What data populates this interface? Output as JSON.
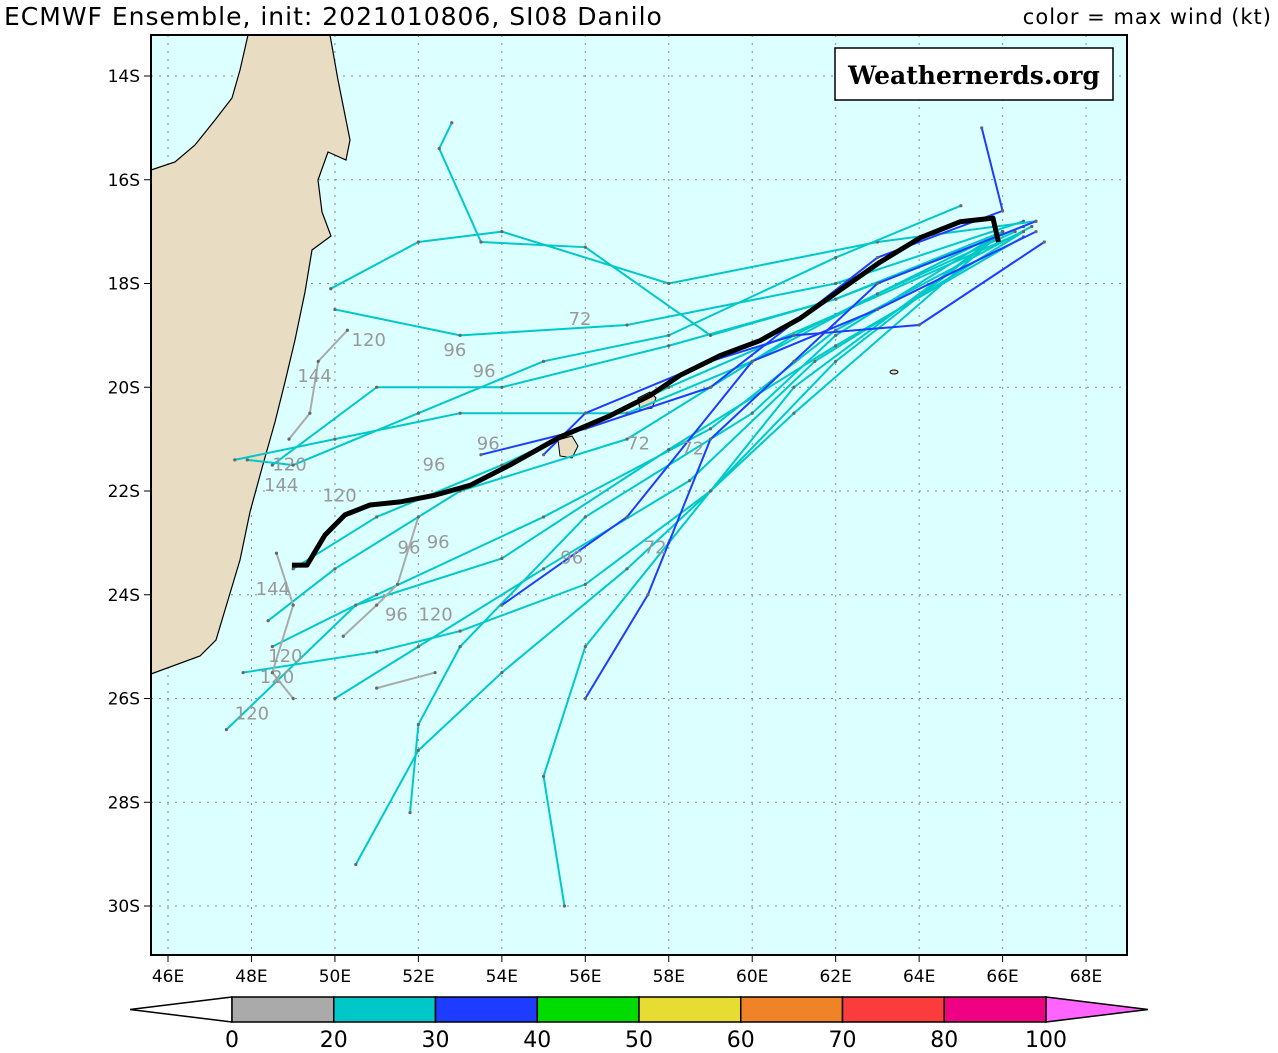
{
  "header": {
    "title": "ECMWF Ensemble, init: 2021010806, SI08 Danilo",
    "legend_caption": "color = max wind (kt)"
  },
  "watermark": "Weathernerds.org",
  "map": {
    "lon_range": [
      45.6,
      69.0
    ],
    "lat_range": [
      13.2,
      30.9
    ],
    "lon_ticks": [
      "46E",
      "48E",
      "50E",
      "52E",
      "54E",
      "56E",
      "58E",
      "60E",
      "62E",
      "64E",
      "66E",
      "68E"
    ],
    "lon_values": [
      46,
      48,
      50,
      52,
      54,
      56,
      58,
      60,
      62,
      64,
      66,
      68
    ],
    "lat_ticks": [
      "14S",
      "16S",
      "18S",
      "20S",
      "22S",
      "24S",
      "26S",
      "28S",
      "30S"
    ],
    "lat_values": [
      14,
      16,
      18,
      20,
      22,
      24,
      26,
      28,
      30
    ],
    "ocean_color": "#dcffff",
    "land_color": "#e8dcc2",
    "grid": "dotted"
  },
  "colorbar": {
    "labels": [
      "0",
      "20",
      "30",
      "40",
      "50",
      "60",
      "70",
      "80",
      "100"
    ],
    "colors": [
      "#aaaaaa",
      "#00c8c8",
      "#1e3cff",
      "#00dc00",
      "#e6dc32",
      "#f08228",
      "#fa3c3c",
      "#f00082",
      "#ff64ff"
    ]
  },
  "ensemble_mean": {
    "color": "#000000",
    "points": [
      [
        65.9,
        17.2
      ],
      [
        65.77,
        16.74
      ],
      [
        64.98,
        16.81
      ],
      [
        64.02,
        17.12
      ],
      [
        63.06,
        17.59
      ],
      [
        62.1,
        18.13
      ],
      [
        61.15,
        18.67
      ],
      [
        60.19,
        19.1
      ],
      [
        59.23,
        19.39
      ],
      [
        58.27,
        19.77
      ],
      [
        57.55,
        20.16
      ],
      [
        56.59,
        20.55
      ],
      [
        55.39,
        20.96
      ],
      [
        54.19,
        21.5
      ],
      [
        53.24,
        21.89
      ],
      [
        52.4,
        22.08
      ],
      [
        51.56,
        22.21
      ],
      [
        50.84,
        22.27
      ],
      [
        50.24,
        22.46
      ],
      [
        49.76,
        22.85
      ],
      [
        49.33,
        23.43
      ],
      [
        48.97,
        23.43
      ]
    ]
  },
  "tracks": [
    {
      "category": "20-30",
      "color": "#00c8c8",
      "points": [
        [
          66.5,
          16.8
        ],
        [
          62,
          18
        ],
        [
          57,
          18.8
        ],
        [
          53,
          19
        ],
        [
          50,
          18.5
        ]
      ]
    },
    {
      "category": "20-30",
      "color": "#00c8c8",
      "points": [
        [
          66.5,
          16.9
        ],
        [
          62,
          18.3
        ],
        [
          58,
          19.2
        ],
        [
          54,
          20
        ],
        [
          51,
          20
        ],
        [
          48.5,
          21.5
        ]
      ]
    },
    {
      "category": "20-30",
      "color": "#00c8c8",
      "points": [
        [
          66.5,
          17
        ],
        [
          62,
          18.6
        ],
        [
          58,
          20
        ],
        [
          54,
          21.5
        ],
        [
          51,
          22.5
        ],
        [
          49,
          23.5
        ]
      ]
    },
    {
      "category": "20-30",
      "color": "#00c8c8",
      "points": [
        [
          66.7,
          16.9
        ],
        [
          62,
          18.9
        ],
        [
          59,
          20.8
        ],
        [
          55,
          22.5
        ],
        [
          51,
          24
        ],
        [
          48.5,
          25
        ]
      ]
    },
    {
      "category": "20-30",
      "color": "#00c8c8",
      "points": [
        [
          66.5,
          17
        ],
        [
          61.5,
          19.5
        ],
        [
          58.5,
          21.8
        ],
        [
          55,
          23.5
        ],
        [
          52,
          25
        ],
        [
          50,
          26
        ]
      ]
    },
    {
      "category": "20-30",
      "color": "#00c8c8",
      "points": [
        [
          66,
          17
        ],
        [
          61,
          20
        ],
        [
          58,
          23
        ],
        [
          56,
          25
        ],
        [
          55,
          27.5
        ],
        [
          55.5,
          30
        ]
      ]
    },
    {
      "category": "20-30",
      "color": "#00c8c8",
      "points": [
        [
          66,
          17
        ],
        [
          61,
          20.5
        ],
        [
          57,
          23.5
        ],
        [
          54,
          25.5
        ],
        [
          52,
          27
        ],
        [
          50.5,
          29.2
        ]
      ]
    },
    {
      "category": "20-30",
      "color": "#00c8c8",
      "points": [
        [
          66,
          17
        ],
        [
          62,
          19
        ],
        [
          60,
          20.5
        ],
        [
          56,
          22.5
        ],
        [
          53,
          25
        ],
        [
          52,
          26.5
        ],
        [
          51.8,
          28.2
        ]
      ]
    },
    {
      "category": "20-30",
      "color": "#00c8c8",
      "points": [
        [
          66.8,
          16.8
        ],
        [
          63,
          17.2
        ],
        [
          58,
          18
        ],
        [
          54,
          17
        ],
        [
          52,
          17.2
        ],
        [
          49.9,
          18.1
        ]
      ]
    },
    {
      "category": "20-30",
      "color": "#00c8c8",
      "points": [
        [
          65,
          16.5
        ],
        [
          62,
          17.5
        ],
        [
          58,
          19
        ],
        [
          55,
          19.5
        ],
        [
          52,
          20.5
        ],
        [
          49,
          21.5
        ],
        [
          47.9,
          21.4
        ]
      ]
    },
    {
      "category": "20-30",
      "color": "#00c8c8",
      "points": [
        [
          66,
          17
        ],
        [
          61,
          19
        ],
        [
          57,
          21
        ],
        [
          53,
          22
        ],
        [
          50,
          23.5
        ],
        [
          48.4,
          24.5
        ]
      ]
    },
    {
      "category": "20-30",
      "color": "#00c8c8",
      "points": [
        [
          66,
          17
        ],
        [
          62,
          18.3
        ],
        [
          59,
          19
        ],
        [
          56,
          17.3
        ],
        [
          53.5,
          17.2
        ],
        [
          52.5,
          15.4
        ],
        [
          52.8,
          14.9
        ]
      ]
    },
    {
      "category": "20-30",
      "color": "#00c8c8",
      "points": [
        [
          66,
          17
        ],
        [
          62,
          19.5
        ],
        [
          59,
          22
        ],
        [
          56,
          23.8
        ],
        [
          53,
          24.7
        ],
        [
          51,
          25.1
        ],
        [
          47.8,
          25.5
        ]
      ]
    },
    {
      "category": "20-30",
      "color": "#00c8c8",
      "points": [
        [
          66.3,
          17
        ],
        [
          63,
          18.2
        ],
        [
          60,
          19.5
        ],
        [
          57,
          20.5
        ],
        [
          53,
          20.5
        ],
        [
          50,
          21
        ],
        [
          47.6,
          21.4
        ]
      ]
    },
    {
      "category": "20-30",
      "color": "#00c8c8",
      "points": [
        [
          66.5,
          17.1
        ],
        [
          62,
          19.2
        ],
        [
          58,
          21.2
        ],
        [
          54,
          23.3
        ],
        [
          50.5,
          24.2
        ],
        [
          47.4,
          26.6
        ]
      ]
    },
    {
      "category": "30-40",
      "color": "#1e3cff",
      "points": [
        [
          66.8,
          16.8
        ],
        [
          63,
          18
        ],
        [
          61,
          19.5
        ],
        [
          59,
          21
        ],
        [
          57.5,
          24
        ],
        [
          56,
          26
        ]
      ]
    },
    {
      "category": "30-40",
      "color": "#1e3cff",
      "points": [
        [
          66.8,
          17
        ],
        [
          63,
          18.5
        ],
        [
          60,
          19.5
        ],
        [
          57,
          22.5
        ],
        [
          54,
          24.2
        ]
      ]
    },
    {
      "category": "30-40",
      "color": "#1e3cff",
      "points": [
        [
          65.5,
          15
        ],
        [
          66,
          16.6
        ],
        [
          63,
          17.5
        ],
        [
          59,
          20
        ],
        [
          56,
          20.8
        ],
        [
          53.5,
          21.3
        ]
      ]
    },
    {
      "category": "30-40",
      "color": "#1e3cff",
      "points": [
        [
          67,
          17.2
        ],
        [
          64,
          18.8
        ],
        [
          61,
          19
        ],
        [
          59,
          19.5
        ],
        [
          56,
          20.5
        ],
        [
          55,
          21.3
        ]
      ]
    },
    {
      "category": "0-20",
      "color": "#aaaaaa",
      "points": [
        [
          50.3,
          18.9
        ],
        [
          49.6,
          19.5
        ],
        [
          49.4,
          20.5
        ],
        [
          48.9,
          21
        ]
      ]
    },
    {
      "category": "0-20",
      "color": "#aaaaaa",
      "points": [
        [
          49,
          26
        ],
        [
          48.5,
          25.5
        ],
        [
          49,
          24.2
        ],
        [
          48.6,
          23.2
        ]
      ]
    },
    {
      "category": "0-20",
      "color": "#aaaaaa",
      "points": [
        [
          52,
          22.5
        ],
        [
          51.5,
          23.8
        ],
        [
          51,
          24.2
        ],
        [
          50.2,
          24.8
        ]
      ]
    },
    {
      "category": "0-20",
      "color": "#aaaaaa",
      "points": [
        [
          52.4,
          25.5
        ],
        [
          51,
          25.8
        ]
      ]
    }
  ],
  "hour_labels": [
    {
      "text": "120",
      "lon": 50.4,
      "lat": 19.2
    },
    {
      "text": "96",
      "lon": 52.6,
      "lat": 19.4
    },
    {
      "text": "96",
      "lon": 53.3,
      "lat": 19.8
    },
    {
      "text": "144",
      "lon": 49.1,
      "lat": 19.9
    },
    {
      "text": "72",
      "lon": 55.6,
      "lat": 18.8
    },
    {
      "text": "96",
      "lon": 53.4,
      "lat": 21.2
    },
    {
      "text": "96",
      "lon": 52.1,
      "lat": 21.6
    },
    {
      "text": "120",
      "lon": 48.5,
      "lat": 21.6
    },
    {
      "text": "144",
      "lon": 48.3,
      "lat": 22.0
    },
    {
      "text": "120",
      "lon": 49.7,
      "lat": 22.2
    },
    {
      "text": "96",
      "lon": 51.5,
      "lat": 23.2
    },
    {
      "text": "96",
      "lon": 52.2,
      "lat": 23.1
    },
    {
      "text": "144",
      "lon": 48.1,
      "lat": 24.0
    },
    {
      "text": "96",
      "lon": 51.2,
      "lat": 24.5
    },
    {
      "text": "120",
      "lon": 52.0,
      "lat": 24.5
    },
    {
      "text": "120",
      "lon": 48.4,
      "lat": 25.3
    },
    {
      "text": "120",
      "lon": 48.2,
      "lat": 25.7
    },
    {
      "text": "120",
      "lon": 47.6,
      "lat": 26.4
    },
    {
      "text": "96",
      "lon": 55.4,
      "lat": 23.4
    },
    {
      "text": "72",
      "lon": 58.3,
      "lat": 21.3
    },
    {
      "text": "72",
      "lon": 57.0,
      "lat": 21.2
    },
    {
      "text": "72",
      "lon": 57.4,
      "lat": 23.2
    }
  ]
}
